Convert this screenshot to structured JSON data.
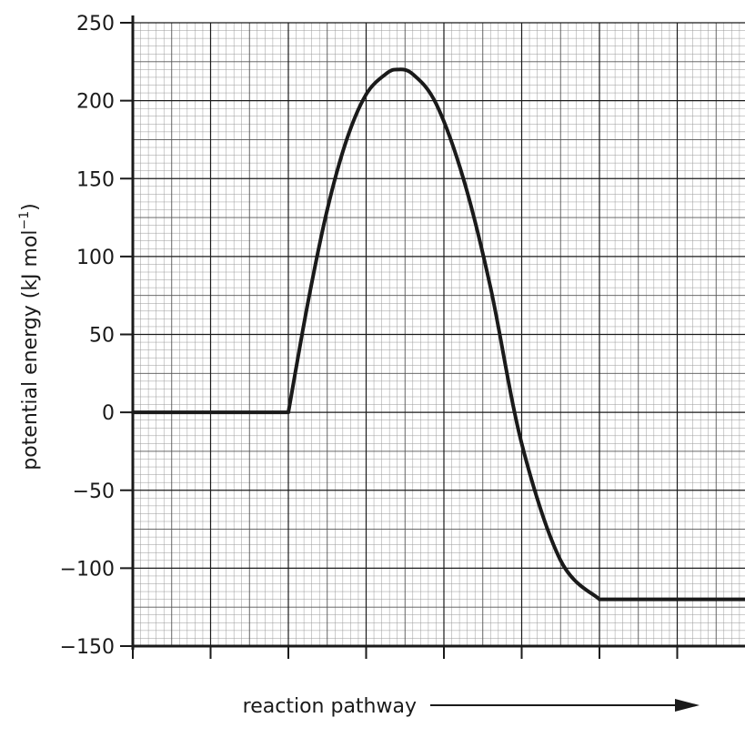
{
  "chart_data": {
    "type": "line",
    "xlabel": "reaction pathway",
    "ylabel": {
      "main": "potential energy (kJ mol",
      "superscript": "−1",
      "close": ")"
    },
    "ylim": [
      -150,
      250
    ],
    "y_ticks": [
      250,
      200,
      150,
      100,
      50,
      0,
      -50,
      -100,
      -150
    ],
    "y_tick_labels": [
      "250",
      "200",
      "150",
      "100",
      "50",
      "0",
      "−50",
      "−100",
      "−150"
    ],
    "xlim": [
      0,
      8
    ],
    "x_ticks": [
      0,
      1,
      2,
      3,
      4,
      5,
      6,
      7,
      8
    ],
    "grid": true,
    "line_color": "#1a1a1a",
    "series": [
      {
        "points": [
          {
            "x": 0.0,
            "y": 0
          },
          {
            "x": 2.0,
            "y": 0
          },
          {
            "x": 2.25,
            "y": 70
          },
          {
            "x": 2.5,
            "y": 130
          },
          {
            "x": 2.75,
            "y": 175
          },
          {
            "x": 3.0,
            "y": 204
          },
          {
            "x": 3.25,
            "y": 217
          },
          {
            "x": 3.4,
            "y": 220
          },
          {
            "x": 3.6,
            "y": 217
          },
          {
            "x": 3.9,
            "y": 198
          },
          {
            "x": 4.25,
            "y": 150
          },
          {
            "x": 4.6,
            "y": 80
          },
          {
            "x": 5.0,
            "y": -20
          },
          {
            "x": 5.5,
            "y": -95
          },
          {
            "x": 6.0,
            "y": -120
          },
          {
            "x": 8.0,
            "y": -120
          }
        ]
      }
    ]
  }
}
